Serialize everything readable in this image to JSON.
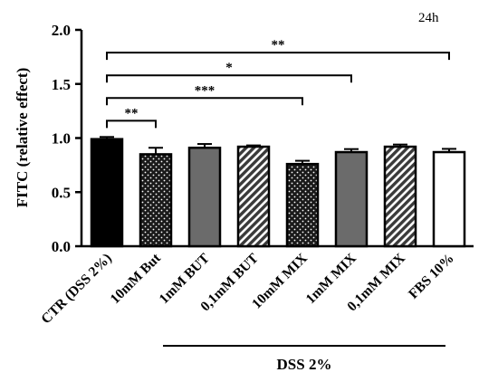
{
  "chart_data": {
    "type": "bar",
    "corner_note": "24h",
    "ylabel": "FITC (relative effect)",
    "ylim": [
      0,
      2.0
    ],
    "yticks": [
      "0.0",
      "0.5",
      "1.0",
      "1.5",
      "2.0"
    ],
    "categories": [
      "CTR (DSS 2%)",
      "10mM But",
      "1mM BUT",
      "0,1mM BUT",
      "10mM MIX",
      "1mM MIX",
      "0,1mM MIX",
      "FBS 10%"
    ],
    "values": [
      0.99,
      0.85,
      0.91,
      0.92,
      0.76,
      0.87,
      0.92,
      0.87
    ],
    "errors": [
      0.02,
      0.06,
      0.035,
      0.012,
      0.03,
      0.028,
      0.02,
      0.03
    ],
    "fills": [
      "solid-black",
      "dots",
      "solid-gray",
      "hatch",
      "dots",
      "solid-gray",
      "hatch",
      "white"
    ],
    "colors": {
      "black": "#000000",
      "gray": "#6b6b6b",
      "white": "#ffffff"
    },
    "group_label": "DSS 2%",
    "significance": [
      {
        "from": 0,
        "to": 1,
        "y": 1.16,
        "label": "**"
      },
      {
        "from": 0,
        "to": 4,
        "y": 1.37,
        "label": "***"
      },
      {
        "from": 0,
        "to": 5,
        "y": 1.58,
        "label": "*"
      },
      {
        "from": 0,
        "to": 7,
        "y": 1.79,
        "label": "**"
      }
    ]
  }
}
